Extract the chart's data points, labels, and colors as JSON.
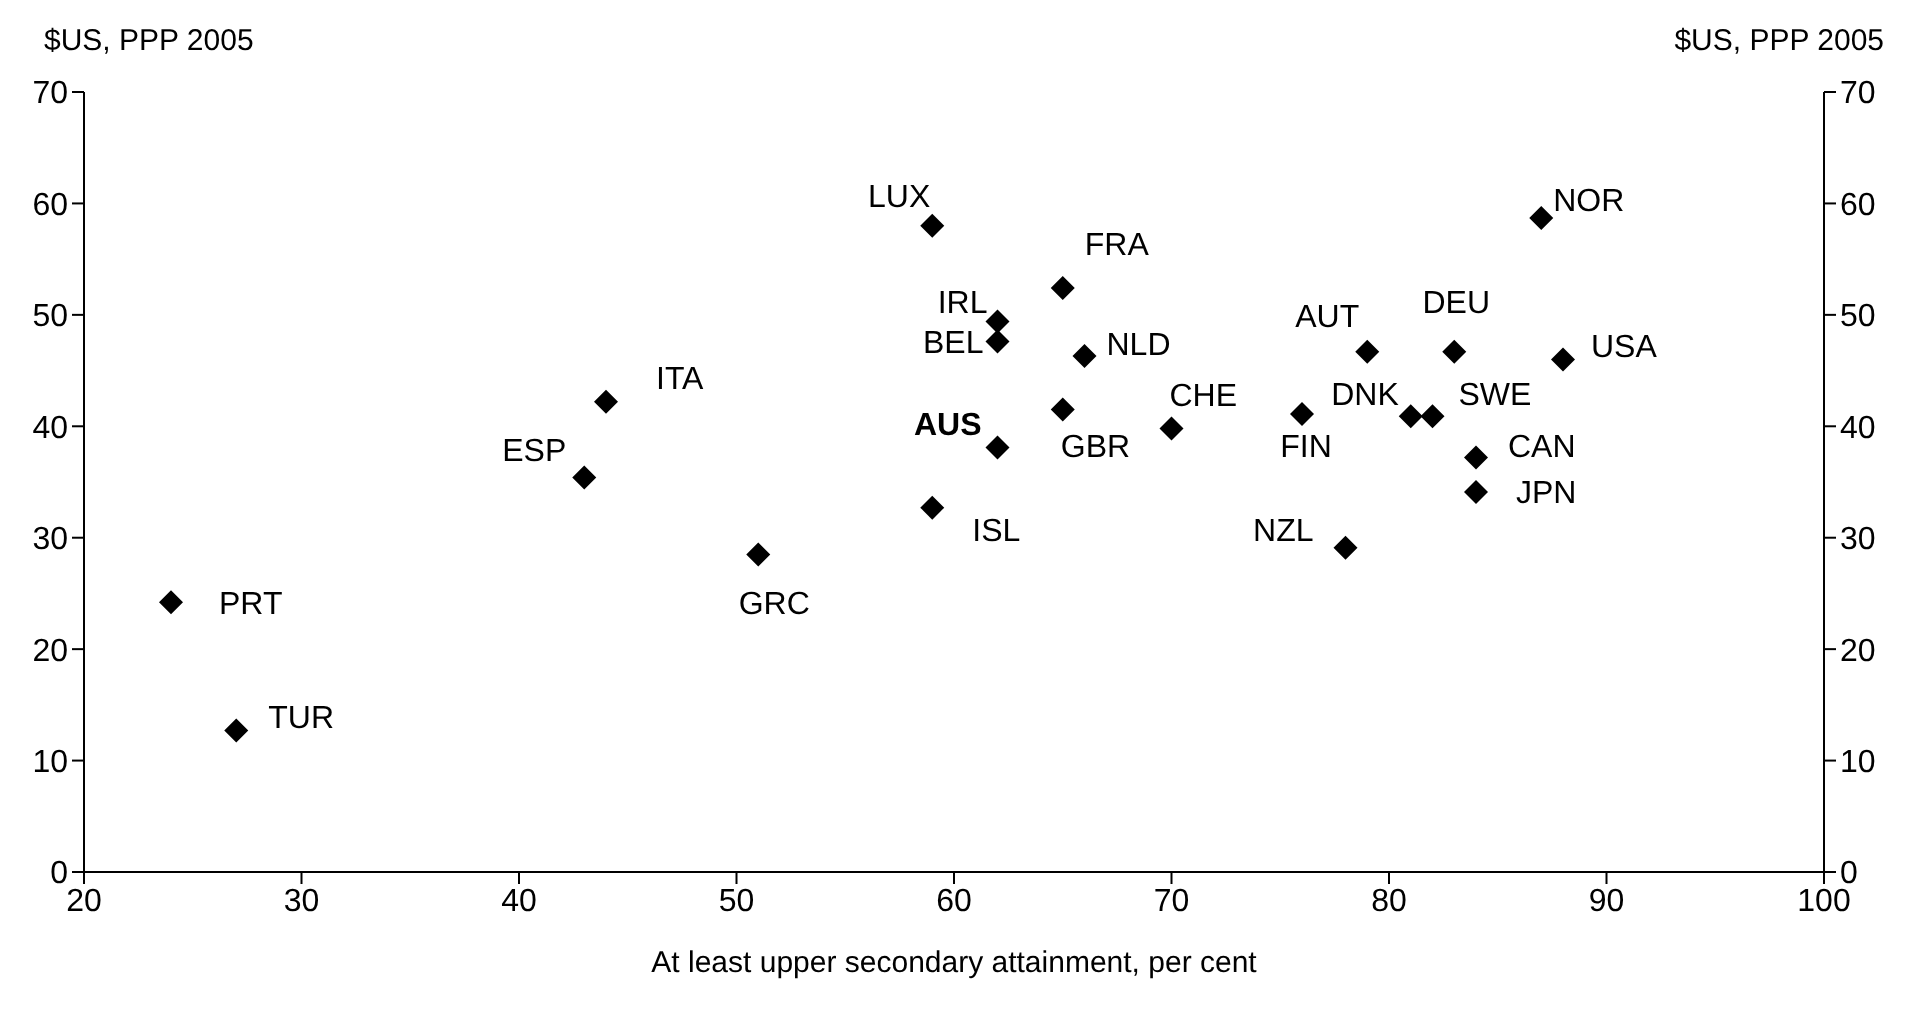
{
  "chart_data": {
    "type": "scatter",
    "ylabel": "$US, PPP 2005",
    "y2label": "$US, PPP 2005",
    "xlabel": "At least upper secondary attainment, per cent",
    "xlim": [
      20,
      100
    ],
    "xticks": [
      20,
      30,
      40,
      50,
      60,
      70,
      80,
      90,
      100
    ],
    "ylim": [
      0,
      70
    ],
    "yticks": [
      0,
      10,
      20,
      30,
      40,
      50,
      60,
      70
    ],
    "y2lim": [
      0,
      70
    ],
    "y2ticks": [
      0,
      10,
      20,
      30,
      40,
      50,
      60,
      70
    ],
    "grid": false,
    "legend": false,
    "marker": "diamond",
    "series": [
      {
        "color": "#000000",
        "x": [
          24,
          27,
          43,
          44,
          51,
          59,
          59,
          62,
          62,
          62,
          65,
          65,
          66,
          70,
          76,
          78,
          79,
          81,
          82,
          83,
          84,
          84,
          87,
          88
        ],
        "values": [
          24.2,
          12.7,
          35.4,
          42.2,
          28.5,
          58,
          32.7,
          38.1,
          49.4,
          47.6,
          52.4,
          41.5,
          46.3,
          39.8,
          41.1,
          29.1,
          46.7,
          40.9,
          40.9,
          46.7,
          37.2,
          34.1,
          58.7,
          46
        ]
      }
    ],
    "annotations": [
      {
        "text": "PRT",
        "x": 24,
        "y": 24.2
      },
      {
        "text": "TUR",
        "x": 27,
        "y": 12.7
      },
      {
        "text": "ESP",
        "x": 43,
        "y": 35.4
      },
      {
        "text": "ITA",
        "x": 44,
        "y": 42.2
      },
      {
        "text": "GRC",
        "x": 51,
        "y": 28.5
      },
      {
        "text": "LUX",
        "x": 59,
        "y": 58
      },
      {
        "text": "ISL",
        "x": 59,
        "y": 32.7
      },
      {
        "text": "AUS",
        "x": 62,
        "y": 38.1
      },
      {
        "text": "IRL",
        "x": 62,
        "y": 49.4
      },
      {
        "text": "BEL",
        "x": 62,
        "y": 47.6
      },
      {
        "text": "FRA",
        "x": 65,
        "y": 52.4
      },
      {
        "text": "GBR",
        "x": 65,
        "y": 41.5
      },
      {
        "text": "NLD",
        "x": 66,
        "y": 46.3
      },
      {
        "text": "CHE",
        "x": 70,
        "y": 39.8
      },
      {
        "text": "FIN",
        "x": 76,
        "y": 41.1
      },
      {
        "text": "NZL",
        "x": 78,
        "y": 29.1
      },
      {
        "text": "AUT",
        "x": 79,
        "y": 46.7
      },
      {
        "text": "DNK",
        "x": 81,
        "y": 40.9
      },
      {
        "text": "SWE",
        "x": 82,
        "y": 40.9
      },
      {
        "text": "DEU",
        "x": 83,
        "y": 46.7
      },
      {
        "text": "CAN",
        "x": 84,
        "y": 37.2
      },
      {
        "text": "JPN",
        "x": 84,
        "y": 34.1
      },
      {
        "text": "NOR",
        "x": 87,
        "y": 58.7
      },
      {
        "text": "USA",
        "x": 88,
        "y": 46
      }
    ]
  }
}
